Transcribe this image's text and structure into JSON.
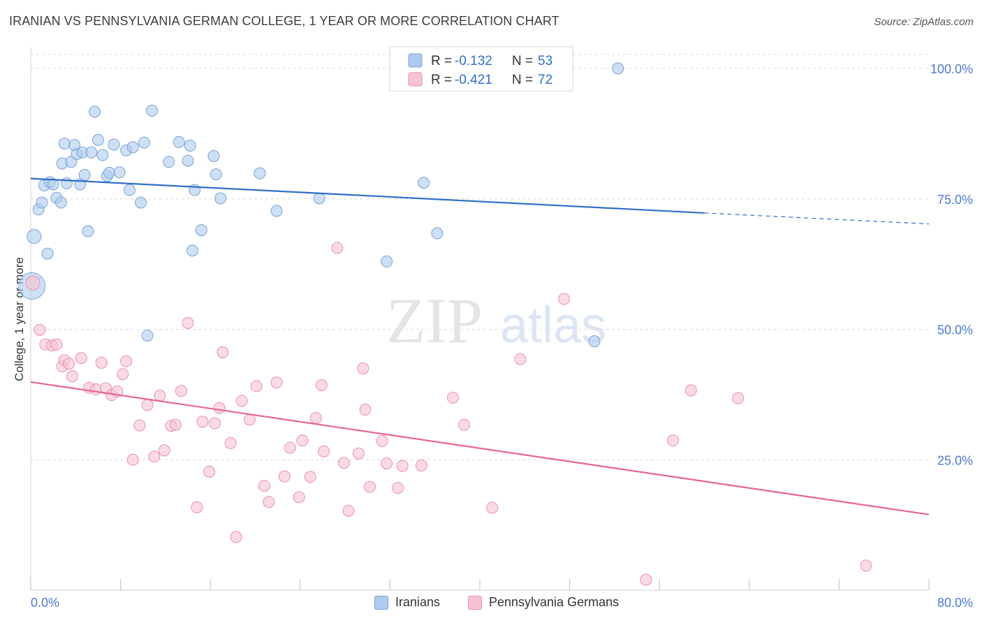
{
  "header": {
    "title": "IRANIAN VS PENNSYLVANIA GERMAN COLLEGE, 1 YEAR OR MORE CORRELATION CHART",
    "source": "Source: ZipAtlas.com"
  },
  "watermark": {
    "zip": "ZIP",
    "atlas": "atlas"
  },
  "colors": {
    "iranians_fill": "#aecbef",
    "iranians_stroke": "#7aa3d6",
    "iranians_line": "#2f6fc8",
    "pa_fill": "#f6c3d3",
    "pa_stroke": "#e98fac",
    "pa_line": "#e56592",
    "axis_text": "#4a7bd0",
    "grid": "#d9d9d9"
  },
  "legend": {
    "rows": [
      {
        "r_label": "R = ",
        "r_value": "-0.132",
        "n_label": "N = ",
        "n_value": "53"
      },
      {
        "r_label": "R = ",
        "r_value": "-0.421",
        "n_label": "N = ",
        "n_value": "72"
      }
    ]
  },
  "chart_data": {
    "type": "scatter",
    "title": "IRANIAN VS PENNSYLVANIA GERMAN COLLEGE, 1 YEAR OR MORE CORRELATION CHART",
    "xlabel": "",
    "ylabel": "College, 1 year or more",
    "xlim": [
      0,
      80
    ],
    "ylim": [
      0,
      101
    ],
    "x_tick_labels": [
      "0.0%",
      "80.0%"
    ],
    "y_tick_values": [
      100,
      75,
      50,
      25
    ],
    "y_tick_labels": [
      "100.0%",
      "75.0%",
      "50.0%",
      "25.0%"
    ],
    "grid": true,
    "legend_position": "top-center",
    "series": [
      {
        "name": "Iranians",
        "R": -0.132,
        "N": 53,
        "trend": {
          "x": [
            0,
            60
          ],
          "y": [
            78.9,
            72.3
          ]
        },
        "trend_dashed": {
          "x": [
            60,
            80
          ],
          "y": [
            72.3,
            70.2
          ]
        },
        "points": [
          [
            0.1,
            58.3
          ],
          [
            0.3,
            67.8
          ],
          [
            0.7,
            73.0
          ],
          [
            1.0,
            74.3
          ],
          [
            1.2,
            77.6
          ],
          [
            1.5,
            64.5
          ],
          [
            1.7,
            78.2
          ],
          [
            2.0,
            77.8
          ],
          [
            2.3,
            75.2
          ],
          [
            2.7,
            74.3
          ],
          [
            2.8,
            81.8
          ],
          [
            3.0,
            85.6
          ],
          [
            3.2,
            78.0
          ],
          [
            3.6,
            82.1
          ],
          [
            3.9,
            85.3
          ],
          [
            4.1,
            83.6
          ],
          [
            4.4,
            77.8
          ],
          [
            4.6,
            83.9
          ],
          [
            4.8,
            79.6
          ],
          [
            5.1,
            68.8
          ],
          [
            5.4,
            83.9
          ],
          [
            5.7,
            91.7
          ],
          [
            6.0,
            86.3
          ],
          [
            6.4,
            83.4
          ],
          [
            6.8,
            79.4
          ],
          [
            7.0,
            80.0
          ],
          [
            7.4,
            85.4
          ],
          [
            7.9,
            80.1
          ],
          [
            8.5,
            84.3
          ],
          [
            8.8,
            76.7
          ],
          [
            9.1,
            84.9
          ],
          [
            9.8,
            74.3
          ],
          [
            10.1,
            85.8
          ],
          [
            10.4,
            48.8
          ],
          [
            10.8,
            91.9
          ],
          [
            12.3,
            82.1
          ],
          [
            13.2,
            85.9
          ],
          [
            14.0,
            82.3
          ],
          [
            14.2,
            85.2
          ],
          [
            14.4,
            65.1
          ],
          [
            14.6,
            76.7
          ],
          [
            15.2,
            69.0
          ],
          [
            16.3,
            83.2
          ],
          [
            16.5,
            79.7
          ],
          [
            16.9,
            75.1
          ],
          [
            20.4,
            79.9
          ],
          [
            21.9,
            72.7
          ],
          [
            25.7,
            75.1
          ],
          [
            31.7,
            63.0
          ],
          [
            35.0,
            78.1
          ],
          [
            36.2,
            68.4
          ],
          [
            50.2,
            47.7
          ],
          [
            52.3,
            100.0
          ]
        ]
      },
      {
        "name": "Pennsylvania Germans",
        "R": -0.421,
        "N": 72,
        "trend": {
          "x": [
            0,
            80
          ],
          "y": [
            39.9,
            14.5
          ]
        },
        "points": [
          [
            0.2,
            58.9
          ],
          [
            0.8,
            49.9
          ],
          [
            1.3,
            47.1
          ],
          [
            1.9,
            46.9
          ],
          [
            2.3,
            47.1
          ],
          [
            2.8,
            42.9
          ],
          [
            3.0,
            44.1
          ],
          [
            3.4,
            43.4
          ],
          [
            3.7,
            41.0
          ],
          [
            4.5,
            44.5
          ],
          [
            5.2,
            38.8
          ],
          [
            5.8,
            38.5
          ],
          [
            6.3,
            43.6
          ],
          [
            6.7,
            38.7
          ],
          [
            7.2,
            37.4
          ],
          [
            7.7,
            38.1
          ],
          [
            8.2,
            41.4
          ],
          [
            8.5,
            43.9
          ],
          [
            9.1,
            25.0
          ],
          [
            9.7,
            31.6
          ],
          [
            10.4,
            35.5
          ],
          [
            11.0,
            25.6
          ],
          [
            11.5,
            37.3
          ],
          [
            11.9,
            26.8
          ],
          [
            12.5,
            31.5
          ],
          [
            12.9,
            31.7
          ],
          [
            13.4,
            38.2
          ],
          [
            14.0,
            51.2
          ],
          [
            14.8,
            15.9
          ],
          [
            15.3,
            32.3
          ],
          [
            15.9,
            22.7
          ],
          [
            16.4,
            32.0
          ],
          [
            16.8,
            34.9
          ],
          [
            17.1,
            45.6
          ],
          [
            17.8,
            28.2
          ],
          [
            18.3,
            10.2
          ],
          [
            18.8,
            36.3
          ],
          [
            19.5,
            32.7
          ],
          [
            20.1,
            39.1
          ],
          [
            20.8,
            20.0
          ],
          [
            21.2,
            16.9
          ],
          [
            21.9,
            39.8
          ],
          [
            22.6,
            21.8
          ],
          [
            23.1,
            27.3
          ],
          [
            23.9,
            17.8
          ],
          [
            24.2,
            28.7
          ],
          [
            24.9,
            21.7
          ],
          [
            25.4,
            33.0
          ],
          [
            25.9,
            39.3
          ],
          [
            26.1,
            26.6
          ],
          [
            27.3,
            65.6
          ],
          [
            27.9,
            24.4
          ],
          [
            28.3,
            15.2
          ],
          [
            29.2,
            26.2
          ],
          [
            29.6,
            42.5
          ],
          [
            29.8,
            34.6
          ],
          [
            30.2,
            19.8
          ],
          [
            31.3,
            28.6
          ],
          [
            31.7,
            24.3
          ],
          [
            32.7,
            19.6
          ],
          [
            33.1,
            23.8
          ],
          [
            34.8,
            23.9
          ],
          [
            37.6,
            36.9
          ],
          [
            38.6,
            31.7
          ],
          [
            41.1,
            15.8
          ],
          [
            43.6,
            44.3
          ],
          [
            47.5,
            55.8
          ],
          [
            54.8,
            2.0
          ],
          [
            57.2,
            28.7
          ],
          [
            58.8,
            38.3
          ],
          [
            63.0,
            36.8
          ],
          [
            74.4,
            4.7
          ]
        ]
      }
    ]
  }
}
